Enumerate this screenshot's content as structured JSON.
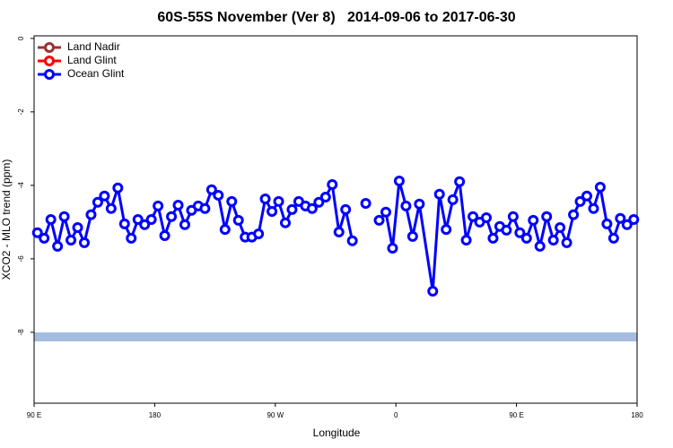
{
  "chart_data": {
    "type": "line",
    "title": "60S-55S November (Ver 8)   2014-09-06 to 2017-06-30",
    "x_label": "Longitude",
    "y_label": "XCO2 - MLO trend (ppm)",
    "xlim": [
      90,
      540
    ],
    "xticks": [
      {
        "value": 90,
        "label": "90 E"
      },
      {
        "value": 180,
        "label": "180"
      },
      {
        "value": 270,
        "label": "90 W"
      },
      {
        "value": 360,
        "label": "0"
      },
      {
        "value": 450,
        "label": "90 E"
      },
      {
        "value": 540,
        "label": "180"
      }
    ],
    "ylim": [
      -9.93,
      0.07
    ],
    "yticks": [
      0,
      -2,
      -4,
      -6,
      -8
    ],
    "legend": "top-left",
    "series": [
      {
        "name": "Land Nadir",
        "color": "#993333"
      },
      {
        "name": "Land Glint",
        "color": "#ff0000"
      },
      {
        "name": "Ocean Glint",
        "color": "#0000ff",
        "x": [
          92.5,
          97.5,
          102.5,
          107.5,
          112.5,
          117.5,
          122.5,
          127.5,
          132.5,
          137.5,
          142.5,
          147.5,
          152.5,
          157.5,
          162.5,
          167.5,
          172.5,
          177.5,
          182.5,
          187.5,
          192.5,
          197.5,
          202.5,
          207.5,
          212.5,
          217.5,
          222.5,
          227.5,
          232.5,
          237.5,
          242.5,
          247.5,
          252.5,
          257.5,
          262.5,
          267.5,
          272.5,
          277.5,
          282.5,
          287.5,
          292.5,
          297.5,
          302.5,
          307.5,
          312.5,
          317.5,
          322.5,
          327.5,
          332.5,
          337.5,
          342.5,
          347.5,
          352.5,
          357.5,
          362.5,
          367.5,
          372.5,
          377.5,
          387.5,
          392.5,
          397.5,
          402.5,
          407.5,
          412.5,
          417.5,
          422.5,
          427.5,
          432.5,
          437.5,
          442.5,
          447.5,
          452.5,
          457.5,
          462.5,
          467.5,
          472.5,
          477.5,
          482.5,
          487.5,
          492.5,
          497.5,
          502.5,
          507.5,
          512.5,
          517.5,
          522.5,
          527.5,
          532.5,
          537.5
        ],
        "values": [
          -5.29,
          -5.44,
          -4.93,
          -5.66,
          -4.85,
          -5.49,
          -5.15,
          -5.56,
          -4.8,
          -4.46,
          -4.29,
          -4.63,
          -4.07,
          -5.05,
          -5.44,
          -4.93,
          -5.07,
          -4.93,
          -4.56,
          -5.37,
          -4.85,
          -4.54,
          -5.07,
          -4.68,
          -4.56,
          -4.63,
          -4.12,
          -4.27,
          -5.2,
          -4.44,
          -4.95,
          -5.41,
          -5.41,
          -5.32,
          -4.37,
          -4.71,
          -4.44,
          -5.02,
          -4.66,
          -4.44,
          -4.56,
          -4.63,
          -4.46,
          -4.32,
          -3.98,
          -5.27,
          -4.66,
          -5.51,
          null,
          -4.49,
          null,
          -4.95,
          -4.73,
          -5.71,
          -3.88,
          -4.56,
          -5.39,
          -4.51,
          -6.88,
          -4.24,
          -5.2,
          -4.39,
          -3.9,
          -5.49,
          -4.85,
          -5.0,
          -4.88,
          -5.44,
          -5.12,
          -5.22,
          -4.85,
          -5.29,
          -5.44,
          -4.95,
          -5.66,
          -4.85,
          -5.49,
          -5.15,
          -5.56,
          -4.8,
          -4.44,
          -4.29,
          -4.63,
          -4.05,
          -5.05,
          -5.44,
          -4.9,
          -5.07,
          -4.93
        ]
      }
    ]
  }
}
